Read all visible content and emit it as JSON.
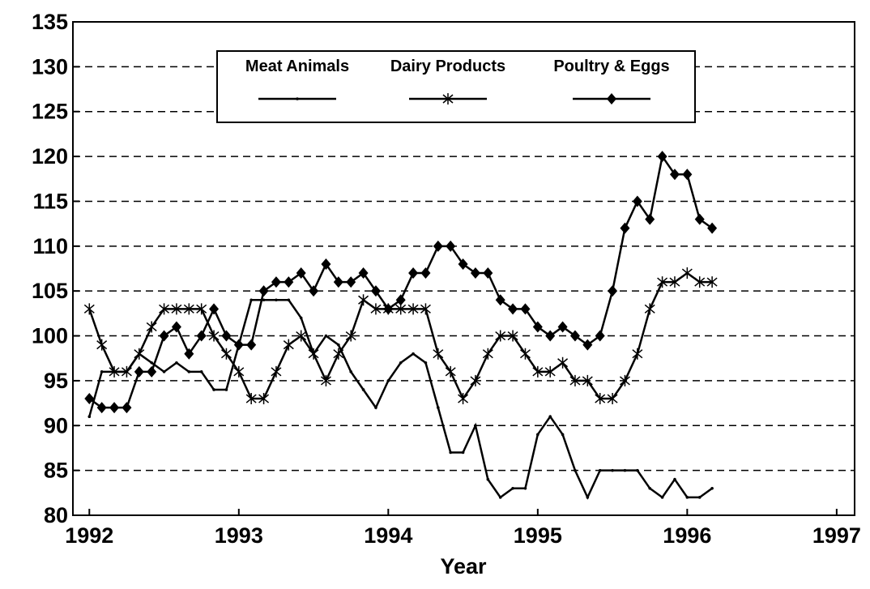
{
  "chart_data": {
    "type": "line",
    "x_label": "Year",
    "x": [
      1992,
      1992.0833,
      1992.1667,
      1992.25,
      1992.3333,
      1992.4167,
      1992.5,
      1992.5833,
      1992.6667,
      1992.75,
      1992.8333,
      1992.9167,
      1993,
      1993.0833,
      1993.1667,
      1993.25,
      1993.3333,
      1993.4167,
      1993.5,
      1993.5833,
      1993.6667,
      1993.75,
      1993.8333,
      1993.9167,
      1994,
      1994.0833,
      1994.1667,
      1994.25,
      1994.3333,
      1994.4167,
      1994.5,
      1994.5833,
      1994.6667,
      1994.75,
      1994.8333,
      1994.9167,
      1995,
      1995.0833,
      1995.1667,
      1995.25,
      1995.3333,
      1995.4167,
      1995.5,
      1995.5833,
      1995.6667,
      1995.75,
      1995.8333,
      1995.9167,
      1996,
      1996.0833,
      1996.1667
    ],
    "series": [
      {
        "name": "Meat Animals",
        "color": "#000000",
        "marker": "dot",
        "values": [
          91,
          96,
          96,
          96,
          98,
          97,
          96,
          97,
          96,
          96,
          94,
          94,
          99,
          104,
          104,
          104,
          104,
          102,
          98,
          100,
          99,
          96,
          94,
          92,
          95,
          97,
          98,
          97,
          92,
          87,
          87,
          90,
          84,
          82,
          83,
          83,
          89,
          91,
          89,
          85,
          82,
          85,
          85,
          85,
          85,
          83,
          82,
          84,
          82,
          82,
          83
        ]
      },
      {
        "name": "Dairy Products",
        "color": "#000000",
        "marker": "asterisk",
        "values": [
          103,
          99,
          96,
          96,
          98,
          101,
          103,
          103,
          103,
          103,
          100,
          98,
          96,
          93,
          93,
          96,
          99,
          100,
          98,
          95,
          98,
          100,
          104,
          103,
          103,
          103,
          103,
          103,
          98,
          96,
          93,
          95,
          98,
          100,
          100,
          98,
          96,
          96,
          97,
          95,
          95,
          93,
          93,
          95,
          98,
          103,
          106,
          106,
          107,
          106,
          106
        ]
      },
      {
        "name": "Poultry & Eggs",
        "color": "#000000",
        "marker": "diamond",
        "values": [
          93,
          92,
          92,
          92,
          96,
          96,
          100,
          101,
          98,
          100,
          103,
          100,
          99,
          99,
          105,
          106,
          106,
          107,
          105,
          108,
          106,
          106,
          107,
          105,
          103,
          104,
          107,
          107,
          110,
          110,
          108,
          107,
          107,
          104,
          103,
          103,
          101,
          100,
          101,
          100,
          99,
          100,
          105,
          112,
          115,
          113,
          120,
          118,
          118,
          113,
          112
        ]
      }
    ],
    "xlim": [
      1991.89,
      1997.12
    ],
    "xticks": [
      1992,
      1993,
      1994,
      1995,
      1996,
      1997
    ],
    "ylim": [
      80,
      135
    ],
    "yticks": [
      80,
      85,
      90,
      95,
      100,
      105,
      110,
      115,
      120,
      125,
      130,
      135
    ],
    "grid": true,
    "legend": "top"
  }
}
